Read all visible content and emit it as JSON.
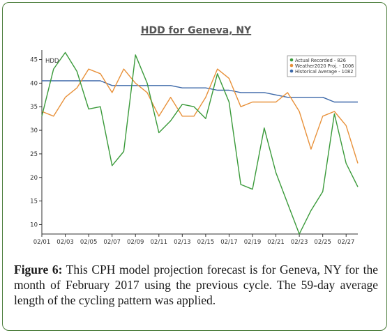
{
  "chart_data": {
    "type": "line",
    "title": "HDD for Geneva, NY",
    "ylabel": "HDD",
    "ylim": [
      8,
      47
    ],
    "yticks": [
      10,
      15,
      20,
      25,
      30,
      35,
      40,
      45
    ],
    "x_ticks": [
      "02/01",
      "02/03",
      "02/05",
      "02/07",
      "02/09",
      "02/11",
      "02/13",
      "02/15",
      "02/17",
      "02/19",
      "02/21",
      "02/23",
      "02/25",
      "02/27"
    ],
    "x_range": [
      1,
      28
    ],
    "legend_position": "top-right",
    "grid": false,
    "series": [
      {
        "name": "Actual Recorded - 826",
        "color": "#3a9a3a",
        "x": [
          1,
          2,
          3,
          4,
          5,
          6,
          7,
          8,
          9,
          10,
          11,
          12,
          13,
          14,
          15,
          16,
          17,
          18,
          19,
          20,
          21,
          22,
          23,
          24,
          25,
          26,
          27,
          28
        ],
        "values": [
          33,
          43,
          46.5,
          42.5,
          34.5,
          35,
          22.5,
          25.5,
          46,
          40,
          29.5,
          32,
          35.5,
          35,
          32.5,
          42,
          36,
          18.5,
          17.5,
          30.5,
          21,
          14.5,
          8,
          13,
          17,
          33.5,
          23,
          18
        ]
      },
      {
        "name": "Weather2020 Proj. - 1006",
        "color": "#e8913a",
        "x": [
          1,
          2,
          3,
          4,
          5,
          6,
          7,
          8,
          9,
          10,
          11,
          12,
          13,
          14,
          15,
          16,
          17,
          18,
          19,
          20,
          21,
          22,
          23,
          24,
          25,
          26,
          27,
          28
        ],
        "values": [
          34,
          33,
          37,
          39,
          43,
          42,
          38,
          43,
          40,
          38,
          33,
          37,
          33,
          33,
          37,
          43,
          41,
          35,
          36,
          36,
          36,
          38,
          34,
          26,
          33,
          34,
          31,
          23
        ]
      },
      {
        "name": "Historical Average - 1082",
        "color": "#3b67a8",
        "x": [
          1,
          2,
          3,
          4,
          5,
          6,
          7,
          8,
          9,
          10,
          11,
          12,
          13,
          14,
          15,
          16,
          17,
          18,
          19,
          20,
          21,
          22,
          23,
          24,
          25,
          26,
          27,
          28
        ],
        "values": [
          40.5,
          40.5,
          40.5,
          40.5,
          40.5,
          40.5,
          39.5,
          39.5,
          39.5,
          39.5,
          39.5,
          39.5,
          39,
          39,
          39,
          38.5,
          38.5,
          38,
          38,
          38,
          37.5,
          37,
          37,
          37,
          37,
          36,
          36,
          36
        ]
      }
    ]
  },
  "caption": {
    "label": "Figure 6:",
    "text": " This CPH model projection forecast is for Geneva, NY for the month of February 2017 using the previous cycle. The 59-day average length of the cycling pattern was applied."
  }
}
